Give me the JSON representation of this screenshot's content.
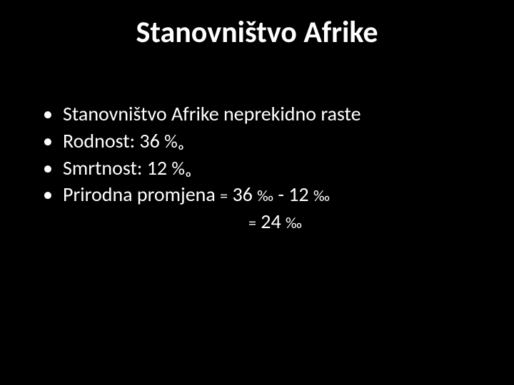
{
  "slide": {
    "background_color": "#000000",
    "text_color": "#ffffff",
    "title": "Stanovništvo Afrike",
    "title_fontsize": 42,
    "title_weight": "bold",
    "body_fontsize": 28,
    "bullets": [
      {
        "text": "Stanovništvo Afrike neprekidno raste"
      },
      {
        "text_prefix": "Rodnost: 36 ",
        "permille": "%ₒ"
      },
      {
        "text_prefix": "Smrtnost: 12 ",
        "permille": "%ₒ"
      },
      {
        "text_prefix": "Prirodna promjena ",
        "eq1": "=",
        "val1": " 36 ",
        "pm1": "‰",
        "minus": " - 12 ",
        "pm2": "‰"
      }
    ],
    "continuation": {
      "eq": "=",
      "val": " 24 ",
      "pm": "‰"
    }
  }
}
